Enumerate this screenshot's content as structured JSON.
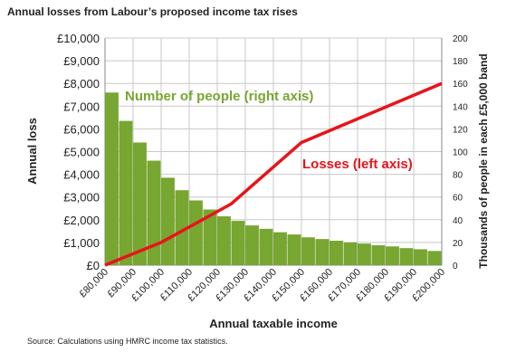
{
  "title": "Annual losses from Labour’s proposed income tax rises",
  "source": "Source: Calculations using HMRC income tax statistics.",
  "chart_data": {
    "type": "bar",
    "xlabel": "Annual taxable income",
    "ylabel": "Annual loss",
    "y2label": "Thousands of people in each £5,000 band",
    "x_ticks": [
      "£80,000",
      "£90,000",
      "£100,000",
      "£110,000",
      "£120,000",
      "£130,000",
      "£140,000",
      "£150,000",
      "£160,000",
      "£170,000",
      "£180,000",
      "£190,000",
      "£200,000"
    ],
    "y_ticks": [
      "£0",
      "£1,000",
      "£2,000",
      "£3,000",
      "£4,000",
      "£5,000",
      "£6,000",
      "£7,000",
      "£8,000",
      "£9,000",
      "£10,000"
    ],
    "y2_ticks": [
      "0",
      "20",
      "40",
      "60",
      "80",
      "100",
      "120",
      "140",
      "160",
      "180",
      "200"
    ],
    "xlim": [
      80000,
      200000
    ],
    "ylim": [
      0,
      10000
    ],
    "y2lim": [
      0,
      200
    ],
    "grid": true,
    "series": [
      {
        "name": "Number of people (right axis)",
        "type": "bar",
        "axis": "right",
        "color": "#77a631",
        "x": [
          80000,
          85000,
          90000,
          95000,
          100000,
          105000,
          110000,
          115000,
          120000,
          125000,
          130000,
          135000,
          140000,
          145000,
          150000,
          155000,
          160000,
          165000,
          170000,
          175000,
          180000,
          185000,
          190000,
          195000
        ],
        "values": [
          152,
          127,
          108,
          92,
          77,
          66,
          57,
          49,
          43,
          39,
          35,
          32,
          29,
          27,
          24.5,
          23,
          21.5,
          20,
          19,
          17.5,
          16.5,
          15,
          14,
          12.5
        ]
      },
      {
        "name": "Losses (left axis)",
        "type": "line",
        "axis": "left",
        "color": "#e8141b",
        "x": [
          80000,
          100000,
          125000,
          150000,
          200000
        ],
        "values": [
          0,
          1000,
          2700,
          5400,
          8000
        ]
      }
    ]
  }
}
